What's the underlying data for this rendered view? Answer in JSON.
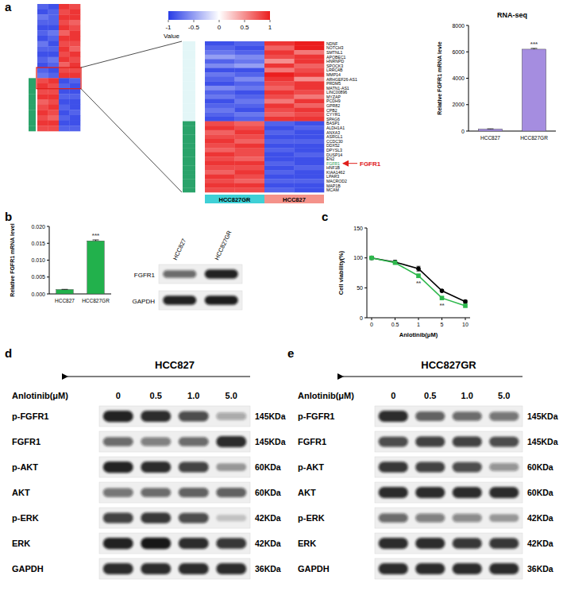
{
  "chart_data": [
    {
      "type": "heatmap",
      "panel_label": "a",
      "colorbar": {
        "title": "Value",
        "range": [
          -1,
          1
        ],
        "ticks": [
          -1,
          -0.5,
          0,
          0.5,
          1
        ]
      },
      "groups": [
        "HCC827GR",
        "HCC827"
      ],
      "rows": [
        "NDNF",
        "NOTCH3",
        "SMTNL1",
        "APOBEC1",
        "HNRNPD",
        "SPOCK3",
        "LRRC4B",
        "MMP14",
        "ARHGEF26-AS1",
        "PRDM5",
        "MATN1-AS1",
        "LINC00896",
        "MYZAP",
        "PCDH9",
        "GPR82",
        "CPB2",
        "CYYR1",
        "SPAG6",
        "BASP1",
        "ALDH1A1",
        "ANXA3",
        "ASRGL1",
        "CCDC30",
        "DDX52",
        "DPYSL3",
        "DUSP14",
        "EN2",
        "FGFR1",
        "HNF1B",
        "KIAA1462",
        "LPAR3",
        "MACROD2",
        "MAP1B",
        "MCAM"
      ],
      "values": [
        [
          -0.9,
          -0.8,
          0.9,
          1.0
        ],
        [
          -0.8,
          -0.9,
          0.7,
          1.0
        ],
        [
          -0.7,
          -0.8,
          0.9,
          0.6
        ],
        [
          -0.5,
          -0.6,
          0.8,
          0.9
        ],
        [
          -0.8,
          -0.7,
          0.5,
          0.9
        ],
        [
          -0.6,
          -0.5,
          0.9,
          0.7
        ],
        [
          -0.9,
          -0.9,
          0.6,
          0.8
        ],
        [
          -0.7,
          -0.8,
          1.0,
          0.9
        ],
        [
          -0.8,
          -0.6,
          0.9,
          0.5
        ],
        [
          -0.9,
          -0.8,
          0.8,
          0.9
        ],
        [
          -0.6,
          -0.7,
          0.7,
          0.9
        ],
        [
          -0.8,
          -0.9,
          0.9,
          0.8
        ],
        [
          -0.7,
          -0.8,
          0.8,
          0.6
        ],
        [
          -0.9,
          -0.7,
          0.6,
          0.9
        ],
        [
          -0.8,
          -0.8,
          0.9,
          0.7
        ],
        [
          -0.7,
          -0.9,
          0.8,
          0.9
        ],
        [
          -0.8,
          -0.7,
          0.7,
          0.8
        ],
        [
          -0.9,
          -0.8,
          0.9,
          0.9
        ],
        [
          0.8,
          0.7,
          -0.8,
          -0.9
        ],
        [
          0.9,
          0.8,
          -0.9,
          -0.8
        ],
        [
          0.7,
          0.9,
          -0.8,
          -0.9
        ],
        [
          0.8,
          0.8,
          -0.9,
          -0.9
        ],
        [
          0.9,
          0.7,
          -0.8,
          -0.8
        ],
        [
          0.8,
          0.9,
          -0.9,
          -0.9
        ],
        [
          0.7,
          0.8,
          -0.8,
          -0.9
        ],
        [
          0.9,
          0.8,
          -0.9,
          -0.8
        ],
        [
          0.8,
          0.7,
          -0.9,
          -0.9
        ],
        [
          0.9,
          0.9,
          -0.8,
          -0.9
        ],
        [
          0.8,
          0.8,
          -0.9,
          -0.8
        ],
        [
          0.7,
          0.9,
          -0.8,
          -0.9
        ],
        [
          0.9,
          0.8,
          -0.9,
          -0.9
        ],
        [
          0.8,
          0.7,
          -0.8,
          -0.8
        ],
        [
          0.9,
          0.9,
          -0.9,
          -0.9
        ],
        [
          0.8,
          0.8,
          -0.8,
          -0.9
        ]
      ],
      "overview_values": [
        [
          -0.8,
          -0.9,
          0.9,
          0.8
        ],
        [
          -0.9,
          -0.8,
          0.8,
          0.9
        ],
        [
          -0.7,
          -0.8,
          0.9,
          0.9
        ],
        [
          -0.8,
          -0.8,
          0.8,
          0.7
        ],
        [
          -0.9,
          -0.9,
          0.9,
          0.8
        ],
        [
          -0.8,
          -0.7,
          0.7,
          0.9
        ],
        [
          -0.9,
          -0.8,
          0.9,
          0.9
        ],
        [
          -0.7,
          -0.9,
          0.8,
          0.8
        ],
        [
          -0.8,
          -0.8,
          0.9,
          0.7
        ],
        [
          -0.9,
          -0.9,
          0.8,
          0.9
        ],
        [
          -0.8,
          -0.7,
          0.9,
          0.8
        ],
        [
          -0.9,
          -0.8,
          0.7,
          0.9
        ],
        [
          -0.8,
          -0.9,
          0.8,
          0.8
        ],
        [
          -0.7,
          -0.8,
          0.9,
          0.9
        ],
        [
          0.8,
          0.9,
          -0.9,
          -0.8
        ],
        [
          0.9,
          0.8,
          -0.8,
          -0.9
        ],
        [
          0.8,
          0.8,
          -0.9,
          -0.9
        ],
        [
          0.9,
          0.9,
          -0.8,
          -0.8
        ],
        [
          0.7,
          0.8,
          -0.9,
          -0.9
        ],
        [
          0.8,
          0.9,
          -0.8,
          -0.9
        ],
        [
          0.9,
          0.8,
          -0.9,
          -0.8
        ],
        [
          0.8,
          0.7,
          -0.8,
          -0.9
        ],
        [
          0.9,
          0.9,
          -0.9,
          -0.9
        ],
        [
          0.8,
          0.8,
          -0.8,
          -0.8
        ]
      ],
      "annotation": "FGFR1"
    },
    {
      "type": "bar",
      "title": "RNA-seq",
      "y_label": "Relative FGFR1 mRNA levle",
      "categories": [
        "HCC827",
        "HCC827GR"
      ],
      "values": [
        150,
        6200
      ],
      "errors": [
        20,
        60
      ],
      "significance": [
        null,
        "***"
      ],
      "color": "#a58de0",
      "ylim": [
        0,
        8000
      ],
      "yticks": [
        0,
        2000,
        4000,
        6000,
        8000
      ]
    },
    {
      "type": "bar",
      "panel_label": "b",
      "y_label": "Relative FGFR1 mRNA level",
      "categories": [
        "HCC827",
        "HCC827GR"
      ],
      "values": [
        0.0013,
        0.0157
      ],
      "errors": [
        5e-05,
        0.0003
      ],
      "significance": [
        null,
        "***"
      ],
      "color": "#22b14c",
      "ylim": [
        0,
        0.02
      ],
      "yticks": [
        {
          "value": 0,
          "label": "0.000"
        },
        0.005,
        {
          "value": 0.01,
          "label": "0.010"
        },
        0.015,
        {
          "value": 0.02,
          "label": "0.020"
        }
      ]
    },
    {
      "type": "blot",
      "lanes": [
        "HCC827",
        "HCC827GR"
      ],
      "rows": [
        {
          "name": "FGFR1",
          "intensity": [
            0.55,
            0.9
          ]
        },
        {
          "name": "GAPDH",
          "intensity": [
            0.9,
            0.92
          ]
        }
      ]
    },
    {
      "type": "line",
      "panel_label": "c",
      "x_label": "Anlotinib(μM)",
      "y_label": "Cell viability(%)",
      "categories": [
        "0",
        "0.5",
        "1",
        "5",
        "10"
      ],
      "ylim": [
        0,
        150
      ],
      "yticks": [
        0,
        50,
        100,
        150
      ],
      "series": [
        {
          "color": "#000000",
          "marker": "circle",
          "values": [
            100,
            93,
            82,
            45,
            27
          ],
          "errors": [
            2,
            3,
            4,
            2,
            2
          ]
        },
        {
          "color": "#2db84c",
          "marker": "square",
          "values": [
            100,
            92,
            70,
            33,
            20
          ],
          "errors": [
            2,
            2,
            3,
            2,
            2
          ],
          "significance": [
            null,
            null,
            "**",
            "**",
            null
          ]
        }
      ]
    },
    {
      "type": "blot",
      "panel_label": "d",
      "title": "HCC827",
      "lane_title": "Anlotinib(μM)",
      "lanes": [
        "0",
        "0.5",
        "1.0",
        "5.0"
      ],
      "rows": [
        {
          "name": "p-FGFR1",
          "size": "145KDa",
          "intensity": [
            0.9,
            0.85,
            0.7,
            0.25
          ]
        },
        {
          "name": "FGFR1",
          "size": "145KDa",
          "intensity": [
            0.55,
            0.45,
            0.55,
            0.85
          ]
        },
        {
          "name": "p-AKT",
          "size": "60KDa",
          "intensity": [
            0.9,
            0.85,
            0.75,
            0.3
          ]
        },
        {
          "name": "AKT",
          "size": "60KDa",
          "intensity": [
            0.5,
            0.55,
            0.6,
            0.6
          ]
        },
        {
          "name": "p-ERK",
          "size": "42KDa",
          "intensity": [
            0.75,
            0.8,
            0.7,
            0.1
          ]
        },
        {
          "name": "ERK",
          "size": "42KDa",
          "intensity": [
            0.9,
            0.95,
            0.85,
            0.8
          ]
        },
        {
          "name": "GAPDH",
          "size": "36KDa",
          "intensity": [
            0.85,
            0.85,
            0.85,
            0.85
          ]
        }
      ]
    },
    {
      "type": "blot",
      "panel_label": "e",
      "title": "HCC827GR",
      "lane_title": "Anlotinib(μM)",
      "lanes": [
        "0",
        "0.5",
        "1.0",
        "5.0"
      ],
      "rows": [
        {
          "name": "p-FGFR1",
          "size": "145KDa",
          "intensity": [
            0.85,
            0.6,
            0.55,
            0.5
          ]
        },
        {
          "name": "FGFR1",
          "size": "145KDa",
          "intensity": [
            0.7,
            0.75,
            0.75,
            0.7
          ]
        },
        {
          "name": "p-AKT",
          "size": "60KDa",
          "intensity": [
            0.8,
            0.75,
            0.7,
            0.35
          ]
        },
        {
          "name": "AKT",
          "size": "60KDa",
          "intensity": [
            0.85,
            0.85,
            0.85,
            0.85
          ]
        },
        {
          "name": "p-ERK",
          "size": "42KDa",
          "intensity": [
            0.55,
            0.45,
            0.4,
            0.3
          ]
        },
        {
          "name": "ERK",
          "size": "42KDa",
          "intensity": [
            0.85,
            0.85,
            0.8,
            0.8
          ]
        },
        {
          "name": "GAPDH",
          "size": "36KDa",
          "intensity": [
            0.85,
            0.85,
            0.85,
            0.85
          ]
        }
      ]
    }
  ]
}
